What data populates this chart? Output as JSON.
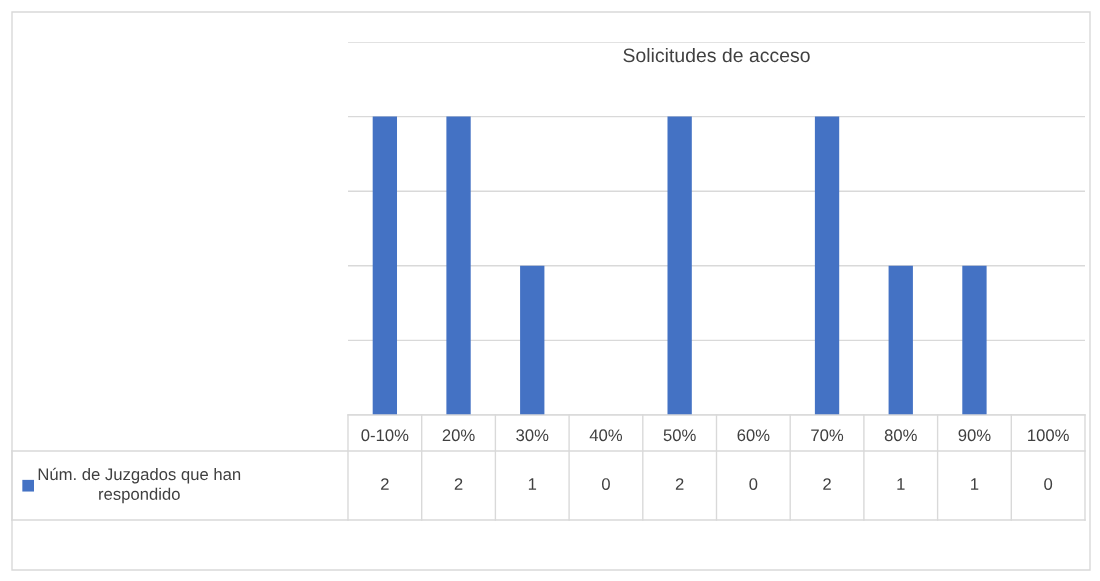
{
  "chart_data": {
    "type": "bar",
    "title": "Solicitudes de acceso",
    "categories": [
      "0-10%",
      "20%",
      "30%",
      "40%",
      "50%",
      "60%",
      "70%",
      "80%",
      "90%",
      "100%"
    ],
    "series": [
      {
        "name": "Núm. de Juzgados que han respondido",
        "color": "#4472c4",
        "values": [
          2,
          2,
          1,
          0,
          2,
          0,
          2,
          1,
          1,
          0
        ]
      }
    ],
    "ylim": [
      0,
      2.5
    ],
    "yticks": [
      {
        "value": 0,
        "label": null
      },
      {
        "value": 0.5,
        "label": null
      },
      {
        "value": 1,
        "label": null
      },
      {
        "value": 1.5,
        "label": null
      },
      {
        "value": 2,
        "label": null
      },
      {
        "value": 2.5,
        "label": null
      }
    ],
    "grid": "y",
    "legend": "bottom",
    "tick_labels": "x",
    "data_labels": true
  }
}
